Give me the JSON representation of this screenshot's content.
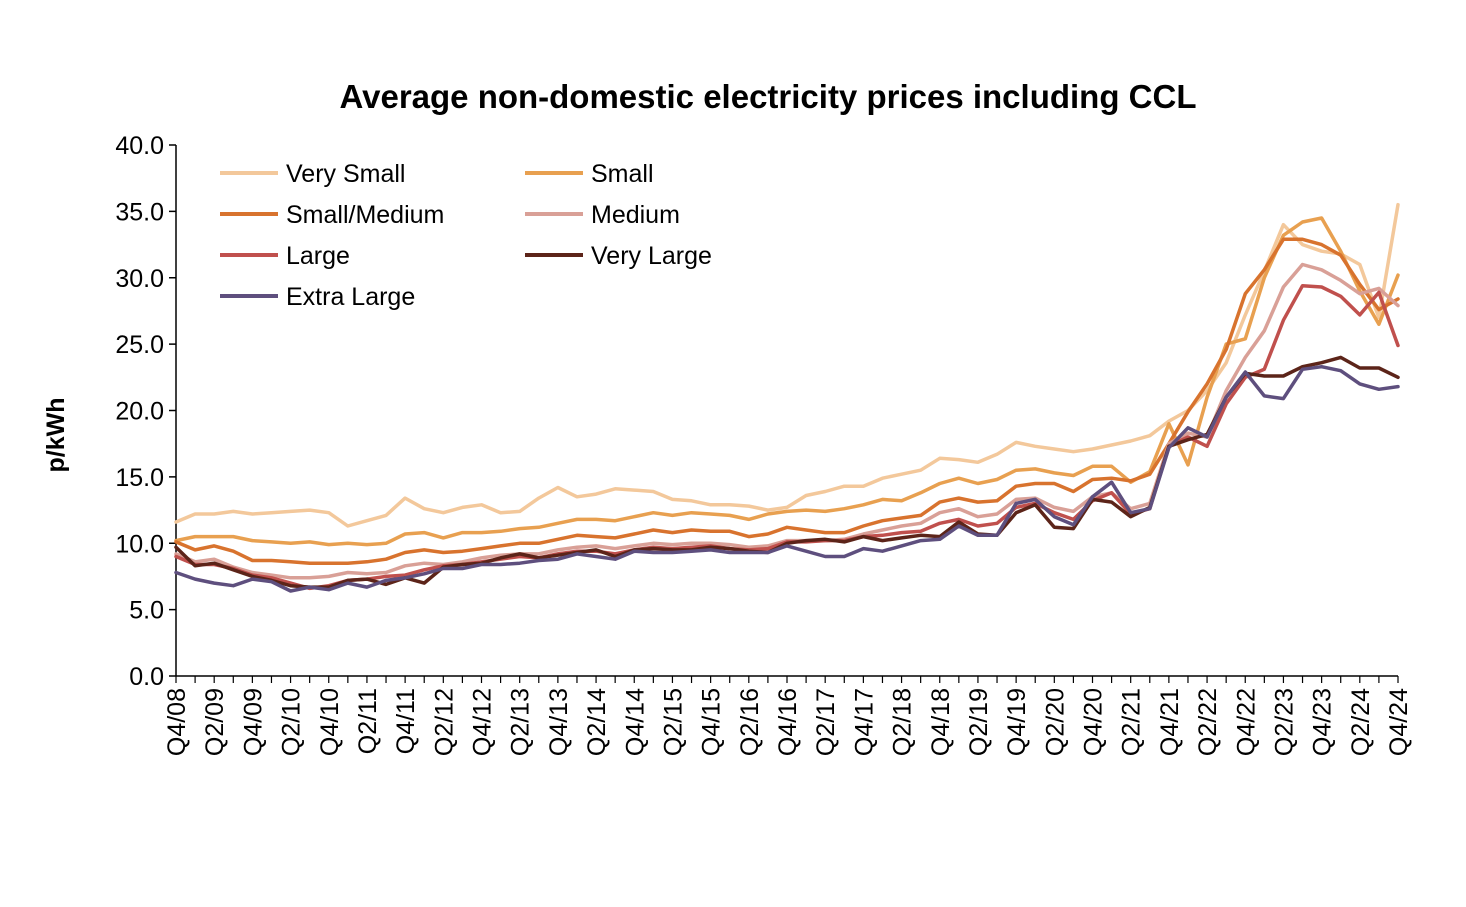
{
  "chart_data": {
    "type": "line",
    "title": "Average non-domestic electricity prices including CCL",
    "xlabel": "",
    "ylabel": "p/kWh",
    "ylim": [
      0,
      40
    ],
    "y_ticks": [
      "0.0",
      "5.0",
      "10.0",
      "15.0",
      "20.0",
      "25.0",
      "30.0",
      "35.0",
      "40.0"
    ],
    "y_tick_values": [
      0,
      5,
      10,
      15,
      20,
      25,
      30,
      35,
      40
    ],
    "categories": [
      "Q4/08",
      "Q1/09",
      "Q2/09",
      "Q3/09",
      "Q4/09",
      "Q1/10",
      "Q2/10",
      "Q3/10",
      "Q4/10",
      "Q1/11",
      "Q2/11",
      "Q3/11",
      "Q4/11",
      "Q1/12",
      "Q2/12",
      "Q3/12",
      "Q4/12",
      "Q1/13",
      "Q2/13",
      "Q3/13",
      "Q4/13",
      "Q1/14",
      "Q2/14",
      "Q3/14",
      "Q4/14",
      "Q1/15",
      "Q2/15",
      "Q3/15",
      "Q4/15",
      "Q1/16",
      "Q2/16",
      "Q3/16",
      "Q4/16",
      "Q1/17",
      "Q2/17",
      "Q3/17",
      "Q4/17",
      "Q1/18",
      "Q2/18",
      "Q3/18",
      "Q4/18",
      "Q1/19",
      "Q2/19",
      "Q3/19",
      "Q4/19",
      "Q1/20",
      "Q2/20",
      "Q3/20",
      "Q4/20",
      "Q1/21",
      "Q2/21",
      "Q3/21",
      "Q4/21",
      "Q1/22",
      "Q2/22",
      "Q3/22",
      "Q4/22",
      "Q1/23",
      "Q2/23",
      "Q3/23",
      "Q4/23",
      "Q1/24",
      "Q2/24",
      "Q3/24",
      "Q4/24"
    ],
    "x_tick_labels": [
      "Q4/08",
      "Q2/09",
      "Q4/09",
      "Q2/10",
      "Q4/10",
      "Q2/11",
      "Q4/11",
      "Q2/12",
      "Q4/12",
      "Q2/13",
      "Q4/13",
      "Q2/14",
      "Q4/14",
      "Q2/15",
      "Q4/15",
      "Q2/16",
      "Q4/16",
      "Q2/17",
      "Q4/17",
      "Q2/18",
      "Q4/18",
      "Q2/19",
      "Q4/19",
      "Q2/20",
      "Q4/20",
      "Q2/21",
      "Q4/21",
      "Q2/22",
      "Q4/22",
      "Q2/23",
      "Q4/23",
      "Q2/24",
      "Q4/24"
    ],
    "legend_position": "top-left",
    "series": [
      {
        "name": "Very Small",
        "color": "#F3C89B",
        "values": [
          11.6,
          12.2,
          12.2,
          12.4,
          12.2,
          12.3,
          12.4,
          12.5,
          12.3,
          11.3,
          11.7,
          12.1,
          13.4,
          12.6,
          12.3,
          12.7,
          12.9,
          12.3,
          12.4,
          13.4,
          14.2,
          13.5,
          13.7,
          14.1,
          14.0,
          13.9,
          13.3,
          13.2,
          12.9,
          12.9,
          12.8,
          12.5,
          12.7,
          13.6,
          13.9,
          14.3,
          14.3,
          14.9,
          15.2,
          15.5,
          16.4,
          16.3,
          16.1,
          16.7,
          17.6,
          17.3,
          17.1,
          16.9,
          17.1,
          17.4,
          17.7,
          18.1,
          19.2,
          20.0,
          21.5,
          23.6,
          27.2,
          30.5,
          34.0,
          32.5,
          32.0,
          31.8,
          31.0,
          27.0,
          35.5
        ]
      },
      {
        "name": "Small",
        "color": "#E8A050",
        "values": [
          10.2,
          10.5,
          10.5,
          10.5,
          10.2,
          10.1,
          10.0,
          10.1,
          9.9,
          10.0,
          9.9,
          10.0,
          10.7,
          10.8,
          10.4,
          10.8,
          10.8,
          10.9,
          11.1,
          11.2,
          11.5,
          11.8,
          11.8,
          11.7,
          12.0,
          12.3,
          12.1,
          12.3,
          12.2,
          12.1,
          11.8,
          12.2,
          12.4,
          12.5,
          12.4,
          12.6,
          12.9,
          13.3,
          13.2,
          13.8,
          14.5,
          14.9,
          14.5,
          14.8,
          15.5,
          15.6,
          15.3,
          15.1,
          15.8,
          15.8,
          14.6,
          15.4,
          19.0,
          15.9,
          21.0,
          25.0,
          25.4,
          30.0,
          33.2,
          34.2,
          34.5,
          32.0,
          29.0,
          26.5,
          30.2
        ]
      },
      {
        "name": "Small/Medium",
        "color": "#D8732E",
        "values": [
          10.1,
          9.5,
          9.8,
          9.4,
          8.7,
          8.7,
          8.6,
          8.5,
          8.5,
          8.5,
          8.6,
          8.8,
          9.3,
          9.5,
          9.3,
          9.4,
          9.6,
          9.8,
          10.0,
          10.0,
          10.3,
          10.6,
          10.5,
          10.4,
          10.7,
          11.0,
          10.8,
          11.0,
          10.9,
          10.9,
          10.5,
          10.7,
          11.2,
          11.0,
          10.8,
          10.8,
          11.3,
          11.7,
          11.9,
          12.1,
          13.1,
          13.4,
          13.1,
          13.2,
          14.3,
          14.5,
          14.5,
          13.9,
          14.8,
          14.9,
          14.7,
          15.2,
          17.5,
          19.9,
          22.0,
          24.6,
          28.8,
          30.6,
          32.9,
          32.9,
          32.5,
          31.7,
          29.5,
          27.6,
          28.4
        ]
      },
      {
        "name": "Medium",
        "color": "#D9A097",
        "values": [
          9.2,
          8.6,
          8.8,
          8.2,
          7.8,
          7.6,
          7.4,
          7.4,
          7.5,
          7.8,
          7.7,
          7.8,
          8.3,
          8.5,
          8.4,
          8.6,
          8.9,
          9.1,
          9.2,
          9.2,
          9.5,
          9.7,
          9.8,
          9.6,
          9.8,
          10.0,
          9.9,
          10.0,
          10.0,
          9.9,
          9.7,
          9.8,
          10.2,
          10.2,
          10.2,
          10.3,
          10.7,
          11.0,
          11.3,
          11.5,
          12.3,
          12.6,
          12.0,
          12.2,
          13.3,
          13.4,
          12.7,
          12.4,
          13.5,
          13.8,
          12.6,
          13.0,
          17.5,
          18.3,
          18.0,
          21.5,
          24.0,
          26.0,
          29.3,
          31.0,
          30.6,
          29.8,
          28.8,
          29.2,
          27.9
        ]
      },
      {
        "name": "Large",
        "color": "#C0504D",
        "values": [
          9.0,
          8.4,
          8.4,
          8.1,
          7.6,
          7.4,
          7.0,
          6.6,
          6.8,
          7.2,
          7.3,
          7.5,
          7.6,
          8.0,
          8.3,
          8.4,
          8.6,
          8.8,
          9.0,
          8.9,
          9.2,
          9.4,
          9.4,
          9.2,
          9.5,
          9.7,
          9.6,
          9.7,
          9.8,
          9.6,
          9.5,
          9.6,
          10.1,
          10.1,
          10.2,
          10.2,
          10.5,
          10.6,
          10.8,
          10.9,
          11.5,
          11.8,
          11.3,
          11.5,
          12.7,
          13.0,
          12.3,
          11.8,
          13.2,
          13.8,
          12.2,
          12.6,
          17.3,
          18.0,
          17.3,
          20.5,
          22.5,
          23.1,
          26.8,
          29.4,
          29.3,
          28.6,
          27.2,
          28.9,
          24.9
        ]
      },
      {
        "name": "Very Large",
        "color": "#5C2419",
        "values": [
          9.7,
          8.3,
          8.5,
          8.0,
          7.5,
          7.2,
          6.8,
          6.7,
          6.7,
          7.2,
          7.3,
          6.9,
          7.4,
          7.0,
          8.2,
          8.4,
          8.5,
          8.9,
          9.2,
          8.9,
          9.1,
          9.3,
          9.5,
          9.0,
          9.5,
          9.6,
          9.5,
          9.5,
          9.7,
          9.6,
          9.4,
          9.3,
          10.0,
          10.2,
          10.3,
          10.1,
          10.5,
          10.2,
          10.4,
          10.6,
          10.5,
          11.6,
          10.7,
          10.6,
          12.3,
          12.9,
          11.2,
          11.1,
          13.3,
          13.1,
          12.0,
          12.7,
          17.3,
          17.8,
          18.2,
          21.0,
          22.8,
          22.6,
          22.6,
          23.3,
          23.6,
          24.0,
          23.2,
          23.2,
          22.5
        ]
      },
      {
        "name": "Extra Large",
        "color": "#5E4F7E",
        "values": [
          7.8,
          7.3,
          7.0,
          6.8,
          7.3,
          7.1,
          6.4,
          6.7,
          6.5,
          7.0,
          6.7,
          7.2,
          7.4,
          7.7,
          8.1,
          8.1,
          8.4,
          8.4,
          8.5,
          8.7,
          8.8,
          9.2,
          9.0,
          8.8,
          9.4,
          9.3,
          9.3,
          9.4,
          9.5,
          9.3,
          9.3,
          9.3,
          9.8,
          9.4,
          9.0,
          9.0,
          9.6,
          9.4,
          9.8,
          10.2,
          10.3,
          11.3,
          10.6,
          10.6,
          13.0,
          13.3,
          12.0,
          11.4,
          13.5,
          14.6,
          12.3,
          12.6,
          17.2,
          18.7,
          18.0,
          21.0,
          22.9,
          21.1,
          20.9,
          23.1,
          23.3,
          23.0,
          22.0,
          21.6,
          21.8
        ]
      }
    ]
  }
}
